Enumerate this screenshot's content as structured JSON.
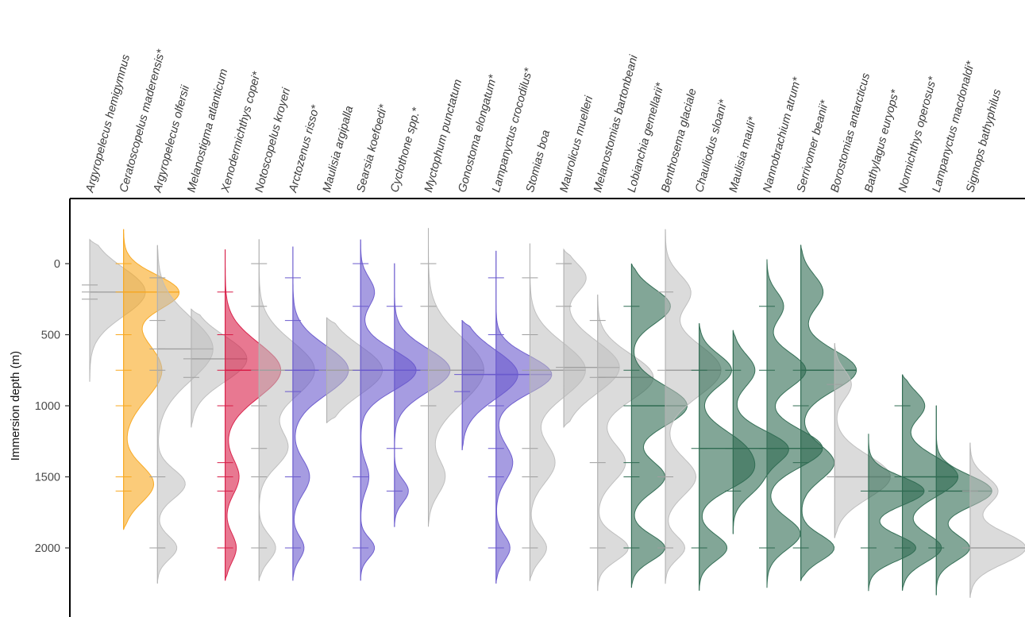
{
  "chart_data": {
    "type": "ridgeline-violin",
    "ylabel": "Immersion depth (m)",
    "xlabel": "",
    "title": "",
    "ylim": [
      -250,
      2450
    ],
    "yticks": [
      0,
      500,
      1000,
      1500,
      2000
    ],
    "y_reversed": true,
    "colors": {
      "grey": "#bdbdbd",
      "orange": "#f8a820",
      "red": "#d81e48",
      "purple": "#6a5acd",
      "green": "#2f6b52"
    },
    "species": [
      {
        "name": "Argyropelecus hemigymnus",
        "color": "grey",
        "median": 200,
        "range": [
          -170,
          830
        ],
        "modes": [
          [
            200,
            1.0,
            170
          ]
        ],
        "ticks": [
          150,
          200,
          250
        ]
      },
      {
        "name": "Ceratoscopelus maderensis*",
        "color": "orange",
        "median": 200,
        "range": [
          -240,
          1870
        ],
        "modes": [
          [
            200,
            1.0,
            120
          ],
          [
            750,
            0.7,
            200
          ],
          [
            1550,
            0.55,
            130
          ]
        ],
        "ticks": [
          0,
          200,
          500,
          750,
          1000,
          1500,
          1600
        ]
      },
      {
        "name": "Argyropelecus olfersii",
        "color": "grey",
        "median": 600,
        "range": [
          -130,
          2250
        ],
        "modes": [
          [
            600,
            1.0,
            220
          ],
          [
            1550,
            0.5,
            100
          ],
          [
            2000,
            0.35,
            80
          ]
        ],
        "ticks": [
          100,
          400,
          600,
          750,
          1500,
          2000
        ]
      },
      {
        "name": "Melanostigma atlanticum",
        "color": "grey",
        "median": 670,
        "range": [
          320,
          1150
        ],
        "modes": [
          [
            670,
            1.0,
            160
          ]
        ],
        "ticks": [
          670,
          800
        ]
      },
      {
        "name": "Xenodermichthys copei*",
        "color": "red",
        "median": 750,
        "range": [
          -100,
          2230
        ],
        "modes": [
          [
            750,
            1.0,
            190
          ],
          [
            1500,
            0.25,
            120
          ],
          [
            2000,
            0.2,
            100
          ]
        ],
        "ticks": [
          200,
          500,
          750,
          1000,
          1400,
          1500,
          1600,
          2000
        ]
      },
      {
        "name": "Notoscopelus kroyeri",
        "color": "grey",
        "median": 750,
        "range": [
          -170,
          2230
        ],
        "modes": [
          [
            750,
            1.0,
            200
          ],
          [
            1300,
            0.5,
            130
          ],
          [
            2000,
            0.3,
            90
          ]
        ],
        "ticks": [
          0,
          300,
          750,
          1000,
          1300,
          1500,
          2000
        ]
      },
      {
        "name": "Arctozenus risso*",
        "color": "purple",
        "median": 750,
        "range": [
          -120,
          2230
        ],
        "modes": [
          [
            750,
            1.0,
            170
          ],
          [
            1500,
            0.3,
            120
          ],
          [
            2000,
            0.2,
            80
          ]
        ],
        "ticks": [
          100,
          400,
          750,
          900,
          1500,
          2000
        ]
      },
      {
        "name": "Maulisia argipalla",
        "color": "grey",
        "median": 750,
        "range": [
          380,
          1120
        ],
        "modes": [
          [
            750,
            1.0,
            170
          ]
        ],
        "ticks": [
          750
        ]
      },
      {
        "name": "Searsia koefoedi*",
        "color": "purple",
        "median": 750,
        "range": [
          -170,
          2230
        ],
        "modes": [
          [
            750,
            1.0,
            140
          ],
          [
            200,
            0.25,
            100
          ],
          [
            1500,
            0.15,
            100
          ],
          [
            2000,
            0.25,
            70
          ]
        ],
        "ticks": [
          0,
          300,
          750,
          1500,
          2000
        ]
      },
      {
        "name": "Cyclothone spp.*",
        "color": "purple",
        "median": 750,
        "range": [
          0,
          1850
        ],
        "modes": [
          [
            750,
            1.0,
            150
          ],
          [
            1600,
            0.25,
            80
          ]
        ],
        "ticks": [
          300,
          750,
          1300,
          1600
        ]
      },
      {
        "name": "Myctophum punctatum",
        "color": "grey",
        "median": 750,
        "range": [
          -250,
          1850
        ],
        "modes": [
          [
            750,
            1.0,
            230
          ],
          [
            1500,
            0.3,
            120
          ]
        ],
        "ticks": [
          0,
          300,
          750,
          1000
        ]
      },
      {
        "name": "Gonostoma elongatum*",
        "color": "purple",
        "median": 780,
        "range": [
          400,
          1310
        ],
        "modes": [
          [
            780,
            1.0,
            170
          ]
        ],
        "ticks": [
          780,
          900
        ]
      },
      {
        "name": "Lampanyctus crocodilus*",
        "color": "purple",
        "median": 780,
        "range": [
          -90,
          2250
        ],
        "modes": [
          [
            780,
            1.0,
            130
          ],
          [
            1400,
            0.3,
            120
          ],
          [
            2000,
            0.25,
            90
          ]
        ],
        "ticks": [
          100,
          500,
          780,
          1000,
          1300,
          1500,
          2000
        ]
      },
      {
        "name": "Stomias boa",
        "color": "grey",
        "median": 750,
        "range": [
          -140,
          2230
        ],
        "modes": [
          [
            750,
            1.0,
            190
          ],
          [
            1400,
            0.45,
            140
          ],
          [
            2000,
            0.3,
            90
          ]
        ],
        "ticks": [
          100,
          500,
          750,
          1300,
          1500,
          2000
        ]
      },
      {
        "name": "Maurolicus muelleri",
        "color": "grey",
        "median": 730,
        "range": [
          -100,
          1150
        ],
        "modes": [
          [
            730,
            1.0,
            180
          ],
          [
            100,
            0.4,
            100
          ]
        ],
        "ticks": [
          0,
          300,
          730
        ]
      },
      {
        "name": "Melanostomias bartonbeani",
        "color": "grey",
        "median": 800,
        "range": [
          220,
          2300
        ],
        "modes": [
          [
            800,
            1.0,
            160
          ],
          [
            1400,
            0.5,
            130
          ],
          [
            2000,
            0.55,
            90
          ]
        ],
        "ticks": [
          400,
          800,
          1400,
          2000
        ]
      },
      {
        "name": "Lobianchia gemellarii*",
        "color": "green",
        "median": 1000,
        "range": [
          0,
          2280
        ],
        "modes": [
          [
            1000,
            1.0,
            140
          ],
          [
            300,
            0.7,
            120
          ],
          [
            1500,
            0.6,
            110
          ],
          [
            2000,
            0.6,
            90
          ]
        ],
        "ticks": [
          300,
          750,
          1000,
          1400,
          1500,
          2000
        ]
      },
      {
        "name": "Benthosema glaciale",
        "color": "grey",
        "median": 750,
        "range": [
          -240,
          2250
        ],
        "modes": [
          [
            750,
            1.0,
            180
          ],
          [
            200,
            0.45,
            120
          ],
          [
            1500,
            0.55,
            130
          ],
          [
            2000,
            0.35,
            80
          ]
        ],
        "ticks": [
          200,
          750,
          1500,
          2000
        ]
      },
      {
        "name": "Chauliodus sloani*",
        "color": "green",
        "median": 1300,
        "range": [
          420,
          2300
        ],
        "modes": [
          [
            750,
            0.7,
            110
          ],
          [
            1300,
            0.9,
            130
          ],
          [
            1500,
            0.8,
            110
          ],
          [
            2000,
            0.6,
            90
          ]
        ],
        "ticks": [
          750,
          1300,
          2000
        ]
      },
      {
        "name": "Maulisia mauli*",
        "color": "green",
        "median": 1300,
        "range": [
          470,
          1900
        ],
        "modes": [
          [
            1300,
            1.0,
            120
          ],
          [
            750,
            0.4,
            110
          ],
          [
            1550,
            0.4,
            100
          ]
        ],
        "ticks": [
          750,
          1300,
          1600
        ]
      },
      {
        "name": "Nannobrachium atrum*",
        "color": "green",
        "median": 1300,
        "range": [
          -30,
          2280
        ],
        "modes": [
          [
            1300,
            1.0,
            130
          ],
          [
            750,
            0.7,
            120
          ],
          [
            300,
            0.3,
            100
          ],
          [
            1900,
            0.6,
            110
          ]
        ],
        "ticks": [
          300,
          750,
          1300,
          2000
        ]
      },
      {
        "name": "Serrivomer beanii*",
        "color": "green",
        "median": 750,
        "range": [
          -130,
          2230
        ],
        "modes": [
          [
            750,
            1.0,
            140
          ],
          [
            200,
            0.4,
            120
          ],
          [
            1400,
            0.6,
            120
          ],
          [
            2000,
            0.6,
            90
          ]
        ],
        "ticks": [
          750,
          1000,
          1400,
          2000
        ]
      },
      {
        "name": "Borostomias antarcticus",
        "color": "grey",
        "median": 1500,
        "range": [
          560,
          1930
        ],
        "modes": [
          [
            1500,
            1.0,
            150
          ],
          [
            850,
            0.3,
            100
          ]
        ],
        "ticks": [
          850,
          1500
        ]
      },
      {
        "name": "Bathylagus euryops*",
        "color": "green",
        "median": 1600,
        "range": [
          1200,
          2300
        ],
        "modes": [
          [
            1600,
            1.0,
            100
          ],
          [
            2000,
            0.85,
            90
          ]
        ],
        "ticks": [
          1600,
          2000
        ]
      },
      {
        "name": "Normichthys operosus*",
        "color": "green",
        "median": 1500,
        "range": [
          780,
          2300
        ],
        "modes": [
          [
            1500,
            1.0,
            140
          ],
          [
            1000,
            0.4,
            100
          ],
          [
            2000,
            0.7,
            100
          ]
        ],
        "ticks": [
          1000,
          1500,
          2000
        ]
      },
      {
        "name": "Lampanyctus macdonaldi*",
        "color": "green",
        "median": 1600,
        "range": [
          1000,
          2330
        ],
        "modes": [
          [
            1600,
            1.0,
            110
          ],
          [
            2000,
            0.6,
            90
          ]
        ],
        "ticks": [
          1600,
          2000
        ]
      },
      {
        "name": "Sigmops bathyphilus",
        "color": "grey",
        "median": 2000,
        "range": [
          1260,
          2350
        ],
        "modes": [
          [
            2000,
            1.0,
            110
          ],
          [
            1600,
            0.5,
            100
          ]
        ],
        "ticks": [
          1600,
          2000
        ]
      }
    ]
  }
}
